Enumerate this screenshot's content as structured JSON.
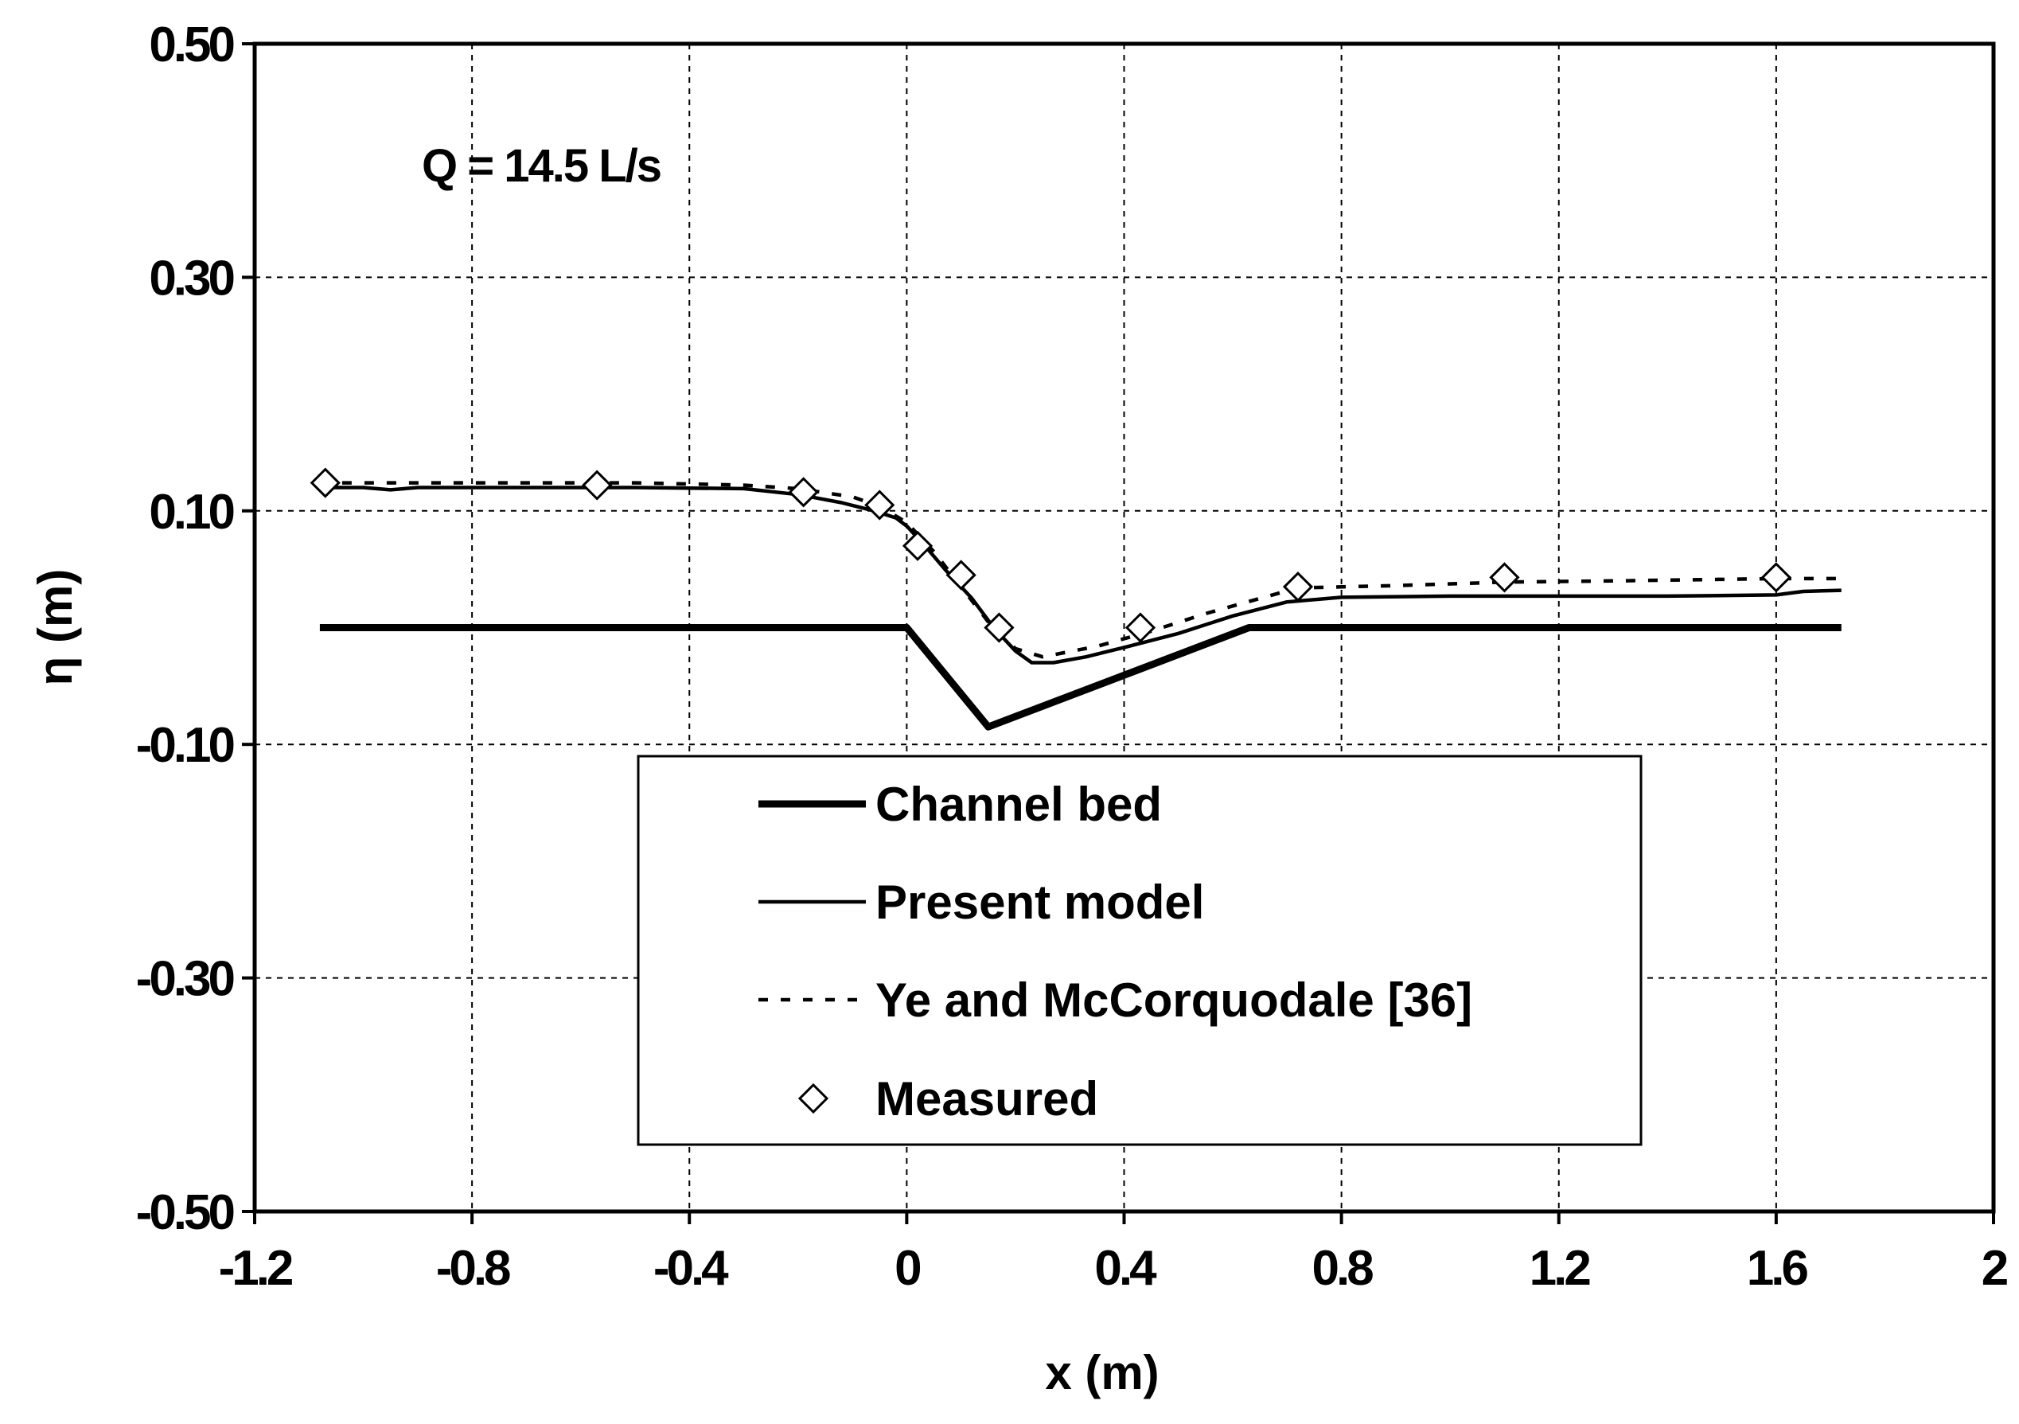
{
  "chart_data": {
    "type": "line",
    "title": "",
    "annotation": "Q = 14.5 L/s",
    "xlabel": "x (m)",
    "ylabel": "η (m)",
    "xlim": [
      -1.2,
      2
    ],
    "ylim": [
      -0.5,
      0.5
    ],
    "x_ticks": [
      -1.2,
      -0.8,
      -0.4,
      0,
      0.4,
      0.8,
      1.2,
      1.6,
      2
    ],
    "y_ticks": [
      -0.5,
      -0.3,
      -0.1,
      0.1,
      0.3,
      0.5
    ],
    "x_tick_labels": [
      "-1.2",
      "-0.8",
      "-0.4",
      "0",
      "0.4",
      "0.8",
      "1.2",
      "1.6",
      "2"
    ],
    "y_tick_labels": [
      "-0.50",
      "-0.30",
      "-0.10",
      "0.10",
      "0.30",
      "0.50"
    ],
    "grid": true,
    "legend_position": "bottom-center",
    "series": [
      {
        "name": "Channel bed",
        "style": "thick-solid",
        "color": "#000000",
        "x": [
          -1.08,
          0,
          0.15,
          0.63,
          1.72
        ],
        "y": [
          0,
          0,
          -0.085,
          0,
          0
        ]
      },
      {
        "name": "Present model",
        "style": "solid",
        "color": "#000000",
        "x": [
          -1.08,
          -1.0,
          -0.95,
          -0.9,
          -0.5,
          -0.3,
          -0.2,
          -0.12,
          -0.06,
          -0.02,
          0.0,
          0.03,
          0.07,
          0.12,
          0.16,
          0.2,
          0.23,
          0.27,
          0.33,
          0.4,
          0.5,
          0.6,
          0.7,
          0.8,
          1.0,
          1.2,
          1.4,
          1.6,
          1.65,
          1.72
        ],
        "y": [
          0.12,
          0.12,
          0.118,
          0.12,
          0.12,
          0.119,
          0.114,
          0.107,
          0.1,
          0.094,
          0.087,
          0.072,
          0.05,
          0.025,
          0.0,
          -0.02,
          -0.03,
          -0.03,
          -0.025,
          -0.017,
          -0.005,
          0.01,
          0.022,
          0.026,
          0.027,
          0.027,
          0.027,
          0.028,
          0.031,
          0.032
        ]
      },
      {
        "name": "Ye and McCorquodale [36]",
        "style": "dashed",
        "color": "#000000",
        "x": [
          -1.08,
          -0.8,
          -0.5,
          -0.3,
          -0.2,
          -0.1,
          -0.05,
          0.0,
          0.05,
          0.1,
          0.15,
          0.2,
          0.25,
          0.35,
          0.45,
          0.55,
          0.65,
          0.72,
          0.9,
          1.1,
          1.3,
          1.6,
          1.72
        ],
        "y": [
          0.124,
          0.124,
          0.124,
          0.122,
          0.119,
          0.112,
          0.104,
          0.09,
          0.065,
          0.035,
          0.005,
          -0.018,
          -0.025,
          -0.016,
          -0.003,
          0.012,
          0.025,
          0.034,
          0.036,
          0.039,
          0.04,
          0.042,
          0.042
        ]
      },
      {
        "name": "Measured",
        "style": "markers",
        "marker": "diamond",
        "color": "#000000",
        "x": [
          -1.07,
          -0.57,
          -0.19,
          -0.05,
          0.02,
          0.1,
          0.17,
          0.43,
          0.72,
          1.1,
          1.6
        ],
        "y": [
          0.124,
          0.122,
          0.116,
          0.105,
          0.07,
          0.045,
          0.0,
          0.0,
          0.035,
          0.043,
          0.043
        ]
      }
    ]
  }
}
